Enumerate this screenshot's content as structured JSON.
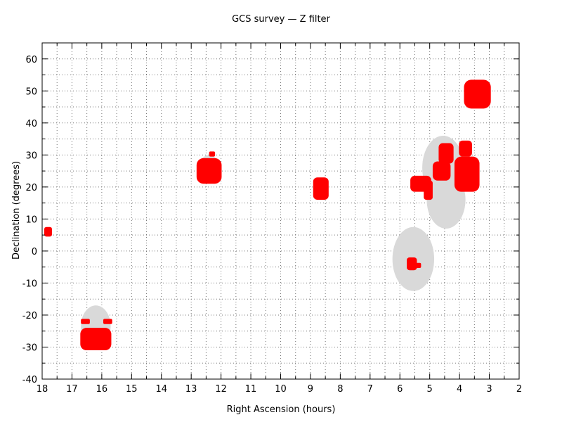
{
  "chart_data": {
    "type": "scatter",
    "title": "GCS survey — Z filter",
    "xlabel": "Right Ascension (hours)",
    "ylabel": "Declination (degrees)",
    "xlim": [
      18,
      2
    ],
    "ylim": [
      -40,
      65
    ],
    "x_ticks": [
      18,
      17,
      16,
      15,
      14,
      13,
      12,
      11,
      10,
      9,
      8,
      7,
      6,
      5,
      4,
      3,
      2
    ],
    "y_ticks": [
      -40,
      -30,
      -20,
      -10,
      0,
      10,
      20,
      30,
      40,
      50,
      60
    ],
    "grid": true,
    "x_direction": "reversed",
    "colors": {
      "target_regions": "#d9d9d9",
      "observed_fields": "#ff0000"
    },
    "target_regions": [
      {
        "ra": 16.2,
        "dec": -23.5,
        "ra_half_width": 0.5,
        "dec_half_width": 6.5
      },
      {
        "ra": 12.4,
        "dec": 25.5,
        "ra_half_width": 0.35,
        "dec_half_width": 4.5
      },
      {
        "ra": 5.55,
        "dec": -2.5,
        "ra_half_width": 0.7,
        "dec_half_width": 10
      },
      {
        "ra": 4.55,
        "dec": 26,
        "ra_half_width": 0.7,
        "dec_half_width": 10
      },
      {
        "ra": 4.45,
        "dec": 16,
        "ra_half_width": 0.65,
        "dec_half_width": 9
      }
    ],
    "observed_fields": [
      {
        "ra": 17.8,
        "dec": 6,
        "ra_half_width": 0.13,
        "dec_half_width": 1.5
      },
      {
        "ra": 16.2,
        "dec": -27.5,
        "ra_half_width": 0.52,
        "dec_half_width": 3.5
      },
      {
        "ra": 16.55,
        "dec": -22,
        "ra_half_width": 0.15,
        "dec_half_width": 0.8
      },
      {
        "ra": 15.8,
        "dec": -22,
        "ra_half_width": 0.15,
        "dec_half_width": 0.8
      },
      {
        "ra": 12.4,
        "dec": 25,
        "ra_half_width": 0.42,
        "dec_half_width": 4
      },
      {
        "ra": 12.3,
        "dec": 30.3,
        "ra_half_width": 0.1,
        "dec_half_width": 0.8
      },
      {
        "ra": 8.65,
        "dec": 19.5,
        "ra_half_width": 0.26,
        "dec_half_width": 3.5
      },
      {
        "ra": 5.6,
        "dec": -4,
        "ra_half_width": 0.17,
        "dec_half_width": 2
      },
      {
        "ra": 5.45,
        "dec": -4.5,
        "ra_half_width": 0.16,
        "dec_half_width": 0.8
      },
      {
        "ra": 5.3,
        "dec": 21,
        "ra_half_width": 0.35,
        "dec_half_width": 2.5
      },
      {
        "ra": 5.05,
        "dec": 19,
        "ra_half_width": 0.15,
        "dec_half_width": 3
      },
      {
        "ra": 4.6,
        "dec": 25,
        "ra_half_width": 0.3,
        "dec_half_width": 3
      },
      {
        "ra": 4.45,
        "dec": 30.5,
        "ra_half_width": 0.25,
        "dec_half_width": 3.2
      },
      {
        "ra": 3.8,
        "dec": 32,
        "ra_half_width": 0.22,
        "dec_half_width": 2.5
      },
      {
        "ra": 3.75,
        "dec": 24,
        "ra_half_width": 0.42,
        "dec_half_width": 5.5
      },
      {
        "ra": 3.4,
        "dec": 49,
        "ra_half_width": 0.45,
        "dec_half_width": 4.5
      }
    ]
  }
}
